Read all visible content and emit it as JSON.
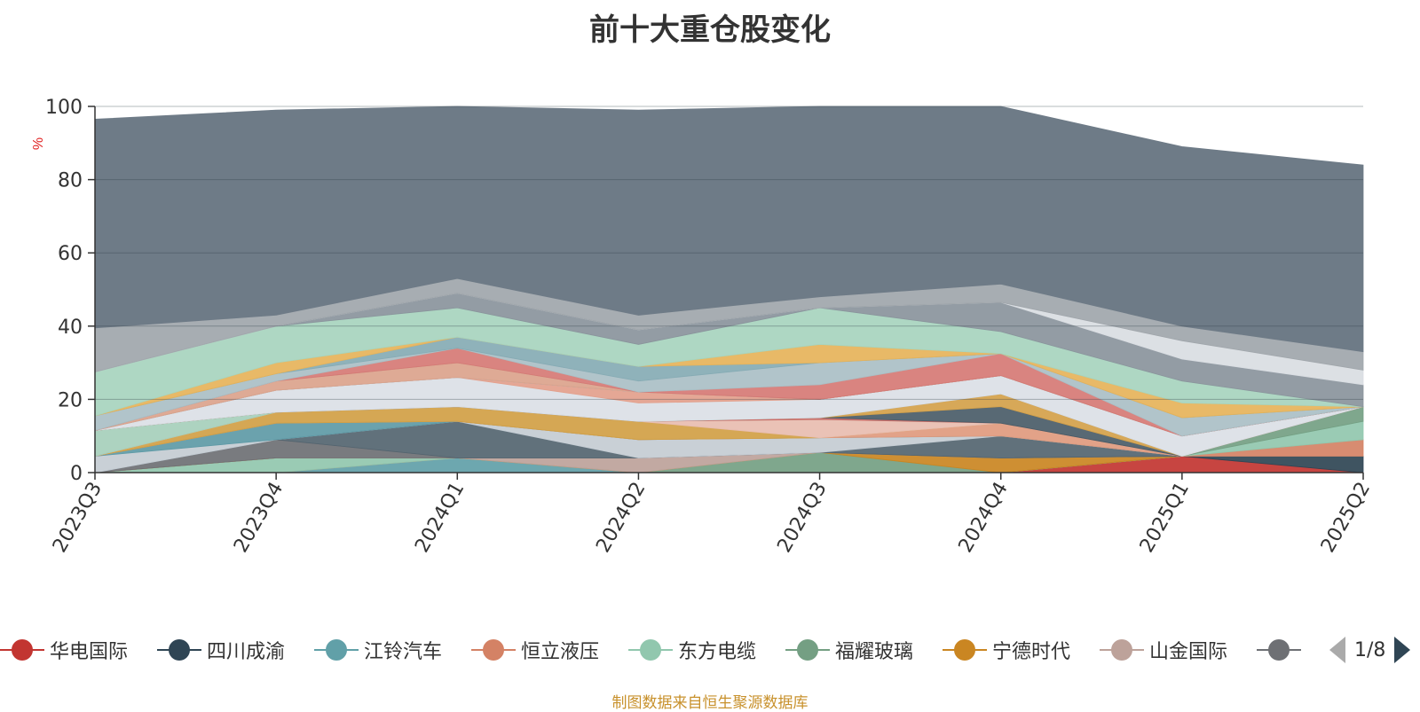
{
  "title": "前十大重仓股变化",
  "source_note": "制图数据来自恒生聚源数据库",
  "pager": {
    "text": "1/8"
  },
  "icons": {
    "prev": "triangle-left-icon",
    "next": "triangle-right-icon"
  },
  "colors": {
    "background_series": "#6e7b87",
    "axis": "#333333",
    "unit": "#e02020",
    "source": "#c8912c"
  },
  "chart_data": {
    "type": "area",
    "stacked": true,
    "title": "前十大重仓股变化",
    "ylabel": "%",
    "ylim": [
      0,
      100
    ],
    "yticks": [
      0,
      20,
      40,
      60,
      80,
      100
    ],
    "categories": [
      "2023Q3",
      "2023Q4",
      "2024Q1",
      "2024Q2",
      "2024Q3",
      "2024Q4",
      "2025Q1",
      "2025Q2"
    ],
    "grid": true,
    "legend_position": "bottom",
    "series": [
      {
        "name": "华电国际",
        "color": "#c23531",
        "values": [
          0,
          0,
          0,
          0,
          0,
          0,
          4.5,
          0
        ]
      },
      {
        "name": "四川成渝",
        "color": "#2f4554",
        "values": [
          0,
          0,
          0,
          0,
          0,
          0,
          0,
          4.5
        ]
      },
      {
        "name": "江铃汽车",
        "color": "#61a0a8",
        "values": [
          0,
          0,
          4,
          0,
          0,
          0,
          0,
          0
        ]
      },
      {
        "name": "恒立液压",
        "color": "#d48265",
        "values": [
          0,
          0,
          0,
          0,
          0,
          0,
          0,
          4.5
        ]
      },
      {
        "name": "东方电缆",
        "color": "#91c7ae",
        "values": [
          0,
          4,
          0,
          0,
          0,
          0,
          0,
          5
        ]
      },
      {
        "name": "福耀玻璃",
        "color": "#749f83",
        "values": [
          0,
          0,
          0,
          0,
          5.5,
          0,
          0,
          4
        ]
      },
      {
        "name": "宁德时代",
        "color": "#ca8622",
        "values": [
          0,
          0,
          0,
          0,
          0,
          4,
          0,
          0
        ]
      },
      {
        "name": "山金国际",
        "color": "#bda29a",
        "values": [
          0,
          0,
          0,
          4,
          0,
          0,
          0,
          0
        ]
      },
      {
        "name": "",
        "color": "#6e7074",
        "values": [
          0,
          5,
          0,
          0,
          0,
          0,
          0,
          0
        ]
      },
      {
        "color": "#546570",
        "values": [
          0,
          0,
          10,
          0,
          0,
          6,
          0,
          0
        ]
      },
      {
        "color": "#c4ccd3",
        "values": [
          4.5,
          0,
          0,
          5,
          4,
          0,
          0,
          0
        ]
      },
      {
        "color": "#5e9aa6",
        "values": [
          0,
          4.5,
          0,
          0,
          0,
          0,
          0,
          0
        ]
      },
      {
        "color": "#e09a7e",
        "values": [
          0,
          0,
          0,
          0,
          0,
          3.5,
          0,
          0
        ]
      },
      {
        "color": "#d1a045",
        "values": [
          0,
          3,
          4,
          5,
          0,
          0,
          0,
          0
        ]
      },
      {
        "color": "#e8bdb0",
        "values": [
          0,
          0,
          0,
          0,
          5,
          0,
          0,
          0
        ]
      },
      {
        "color": "#a6cfbb",
        "values": [
          7,
          0,
          0,
          0,
          0,
          0,
          0,
          0
        ]
      },
      {
        "color": "#cc6b66",
        "values": [
          0,
          0,
          0,
          0,
          0.5,
          0,
          0,
          0
        ]
      },
      {
        "color": "#4a5c68",
        "values": [
          0,
          0,
          0,
          0,
          0,
          4.5,
          0,
          0
        ]
      },
      {
        "color": "#d4a14a",
        "values": [
          0,
          0,
          0,
          0,
          0,
          3.5,
          0,
          0
        ]
      },
      {
        "color": "#9aa3ad",
        "values": [
          0,
          0,
          0,
          0,
          0,
          0,
          0,
          0
        ]
      },
      {
        "color": "#dbe0e6",
        "values": [
          0,
          6,
          8,
          5,
          5,
          5,
          5.5,
          0
        ]
      },
      {
        "color": "#e3a08c",
        "values": [
          0,
          0,
          0,
          3,
          0,
          0,
          0,
          0
        ]
      },
      {
        "color": "#8e979f",
        "values": [
          0,
          0,
          0,
          0,
          0,
          0,
          0,
          0
        ]
      },
      {
        "color": "#b9c2c8",
        "values": [
          0,
          0,
          0,
          0,
          0,
          0,
          0,
          0
        ]
      },
      {
        "color": "#dba38c",
        "values": [
          0,
          2.5,
          4,
          0,
          0,
          0,
          0,
          0
        ]
      },
      {
        "color": "#bd9e96",
        "values": [
          0,
          0,
          0,
          0,
          0,
          0,
          0,
          0
        ]
      },
      {
        "color": "#d67a75",
        "values": [
          0,
          0,
          4,
          0,
          4,
          6,
          0,
          0
        ]
      },
      {
        "color": "#aabfc5",
        "values": [
          4,
          2,
          0,
          3,
          6,
          0,
          5,
          0
        ]
      },
      {
        "color": "#86abb4",
        "values": [
          0,
          0,
          3,
          4,
          0,
          0,
          0,
          0
        ]
      },
      {
        "color": "#e6b35a",
        "values": [
          0,
          3,
          0,
          0,
          5,
          0,
          4,
          0
        ]
      },
      {
        "color": "#a7d4be",
        "values": [
          12,
          10,
          8,
          6,
          10,
          6,
          6,
          0
        ]
      },
      {
        "color": "#8a949c",
        "values": [
          0,
          0,
          4,
          4,
          0,
          8,
          6,
          6
        ]
      },
      {
        "color": "#d9dde2",
        "values": [
          0,
          0,
          0,
          0,
          0,
          0,
          5,
          4
        ]
      },
      {
        "color": "#a0a6ab",
        "values": [
          12,
          3,
          4,
          4,
          3,
          5,
          4,
          5
        ]
      },
      {
        "color": "#6e7b87",
        "values": [
          57,
          56,
          51,
          56,
          53,
          50,
          49,
          51
        ]
      }
    ]
  }
}
